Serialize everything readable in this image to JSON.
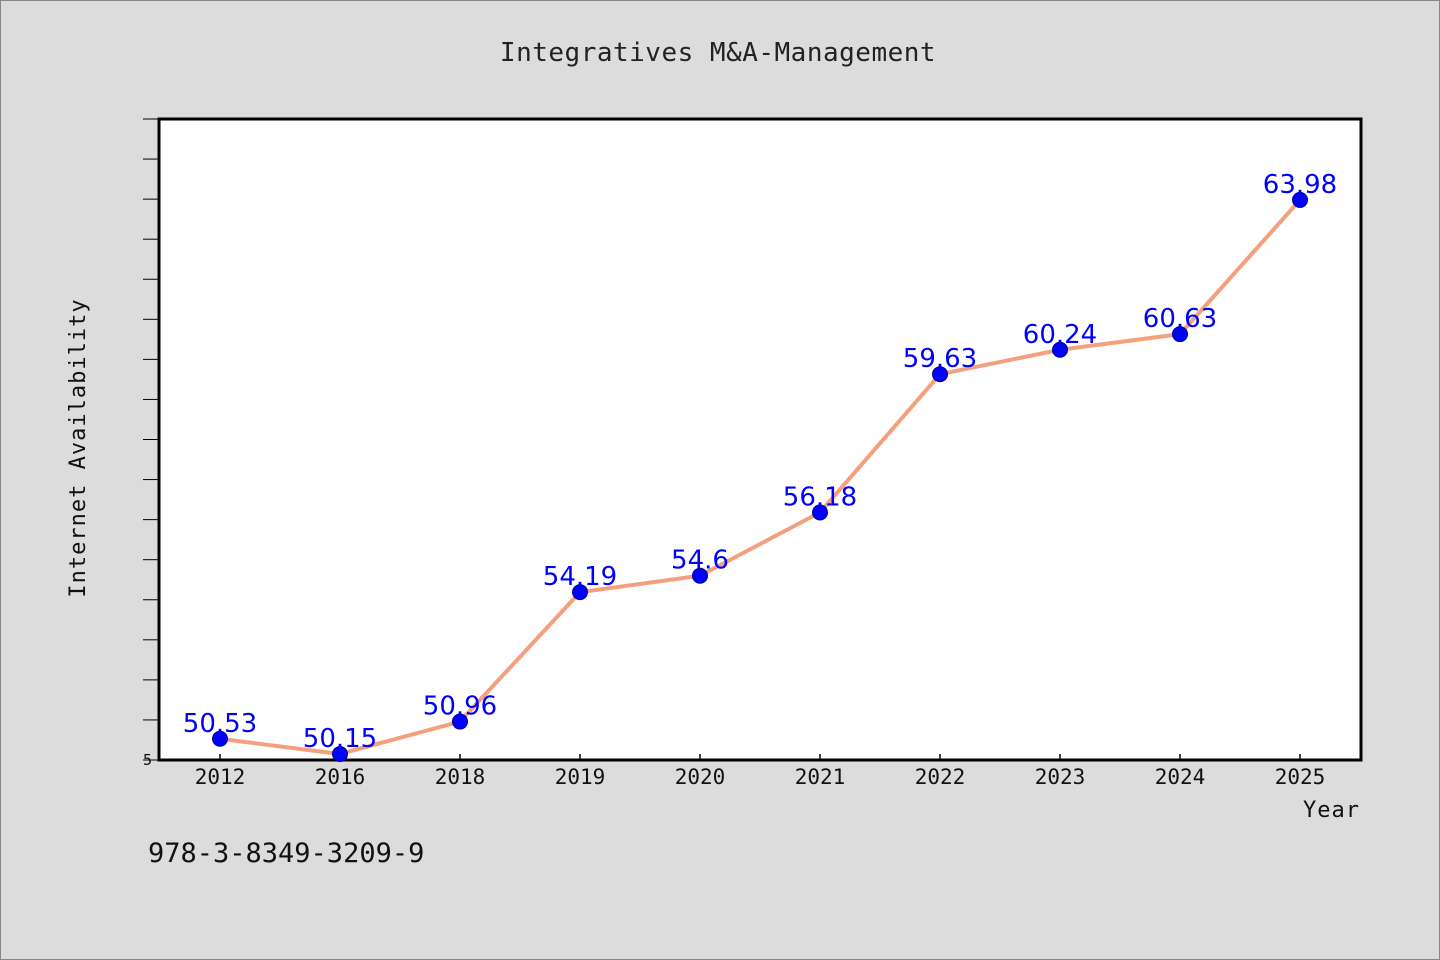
{
  "chart_data": {
    "type": "line",
    "title": "Integratives M&A-Management",
    "xlabel": "Year",
    "ylabel": "Internet Availability",
    "categories": [
      "2012",
      "2016",
      "2018",
      "2019",
      "2020",
      "2021",
      "2022",
      "2023",
      "2024",
      "2025"
    ],
    "series": [
      {
        "values": [
          50.53,
          50.15,
          50.96,
          54.19,
          54.6,
          56.18,
          59.63,
          60.24,
          60.63,
          63.98
        ],
        "data_labels": [
          "50.53",
          "50.15",
          "50.96",
          "54.19",
          "54.6",
          "56.18",
          "59.63",
          "60.24",
          "60.63",
          "63.98"
        ],
        "line_color": "#f4a07e",
        "marker_color": "#0000ff"
      }
    ],
    "ylim": [
      50,
      66
    ],
    "y_tick_labels": [
      "5"
    ],
    "grid": false,
    "legend": "none"
  },
  "footer": {
    "isbn": "978-3-8349-3209-9"
  },
  "colors": {
    "background": "#dcdcdc",
    "plot_background": "#ffffff",
    "line": "#f4a07e",
    "marker": "#0000ff",
    "data_label": "#0000ff"
  }
}
